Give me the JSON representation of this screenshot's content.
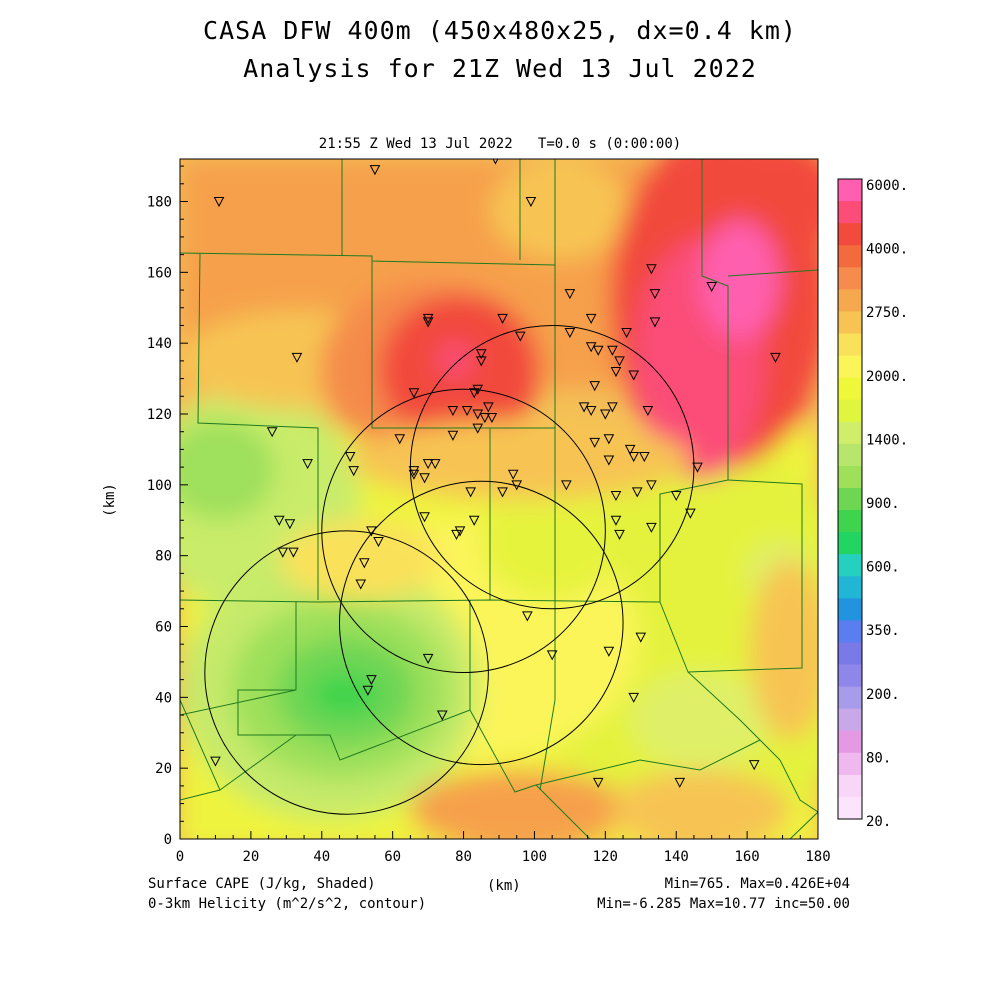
{
  "header": {
    "title": "CASA DFW 400m (450x480x25, dx=0.4 km)",
    "subtitle": "Analysis for 21Z Wed 13 Jul 2022",
    "time_label": "21:55 Z Wed 13 Jul 2022   T=0.0 s (0:00:00)"
  },
  "footer": {
    "field_label": "Surface CAPE (J/kg, Shaded)",
    "contour_label": "0-3km Helicity (m^2/s^2, contour)",
    "x_unit": "(km)",
    "shade_stats": "Min=765. Max=0.426E+04",
    "contour_stats": "Min=-6.285 Max=10.77 inc=50.00"
  },
  "axes": {
    "x_ticks": [
      "0",
      "20",
      "40",
      "60",
      "80",
      "100",
      "120",
      "140",
      "160",
      "180"
    ],
    "y_ticks": [
      "0",
      "20",
      "40",
      "60",
      "80",
      "100",
      "120",
      "140",
      "160",
      "180"
    ],
    "y_label": "(km)",
    "xlim": [
      0,
      180
    ],
    "ylim": [
      0,
      192
    ]
  },
  "colorbar": {
    "labels": [
      "6000.",
      "4000.",
      "2750.",
      "2000.",
      "1400.",
      "900.",
      "600.",
      "350.",
      "200.",
      "80.",
      "20."
    ],
    "colors": [
      "#ff5fae",
      "#fb4d78",
      "#f24a3c",
      "#f36a3c",
      "#f58b4c",
      "#f6a84e",
      "#f7c453",
      "#fae15a",
      "#fbf55a",
      "#eef73a",
      "#dff53e",
      "#d0ee6a",
      "#b8e66c",
      "#9ee05a",
      "#6fd654",
      "#3fd44e",
      "#22d462",
      "#25d0bf",
      "#22b6d6",
      "#2293de",
      "#5a7ef0",
      "#7a7ae6",
      "#8f86ea",
      "#a79ce9",
      "#c9a8ea",
      "#e49ae2",
      "#efb8ef",
      "#f7d6f7",
      "#fce4fc"
    ]
  },
  "chart_data": {
    "type": "heatmap",
    "field": "Surface CAPE (J/kg)",
    "x_unit": "km",
    "y_unit": "km",
    "xlim": [
      0,
      180
    ],
    "ylim": [
      0,
      192
    ],
    "min": 765,
    "max": 4260,
    "features": [
      {
        "kind": "maximum",
        "x": 140,
        "y": 140,
        "value": 4000
      },
      {
        "kind": "maximum",
        "x": 78,
        "y": 135,
        "value": 3500
      },
      {
        "kind": "minimum",
        "x": 45,
        "y": 42,
        "value": 900
      },
      {
        "kind": "relative minimum",
        "x": 105,
        "y": 88,
        "value": 1400
      }
    ],
    "radar_rings_km": [
      {
        "x": 105,
        "y": 105,
        "r": 40
      },
      {
        "x": 80,
        "y": 87,
        "r": 40
      },
      {
        "x": 85,
        "y": 61,
        "r": 40
      },
      {
        "x": 47,
        "y": 47,
        "r": 40
      }
    ],
    "stations_km": [
      [
        11,
        180
      ],
      [
        55,
        189
      ],
      [
        89,
        192
      ],
      [
        99,
        180
      ],
      [
        33,
        136
      ],
      [
        26,
        115
      ],
      [
        36,
        106
      ],
      [
        48,
        108
      ],
      [
        49,
        104
      ],
      [
        28,
        90
      ],
      [
        31,
        89
      ],
      [
        29,
        81
      ],
      [
        32,
        81
      ],
      [
        54,
        87
      ],
      [
        56,
        84
      ],
      [
        52,
        78
      ],
      [
        51,
        72
      ],
      [
        62,
        113
      ],
      [
        66,
        126
      ],
      [
        66,
        104
      ],
      [
        66,
        103
      ],
      [
        70,
        106
      ],
      [
        72,
        106
      ],
      [
        69,
        102
      ],
      [
        69,
        91
      ],
      [
        70,
        147
      ],
      [
        70,
        146
      ],
      [
        77,
        121
      ],
      [
        81,
        121
      ],
      [
        77,
        114
      ],
      [
        78,
        86
      ],
      [
        79,
        87
      ],
      [
        82,
        98
      ],
      [
        83,
        90
      ],
      [
        83,
        126
      ],
      [
        84,
        127
      ],
      [
        85,
        137
      ],
      [
        85,
        135
      ],
      [
        84,
        120
      ],
      [
        86,
        119
      ],
      [
        84,
        116
      ],
      [
        87,
        122
      ],
      [
        88,
        119
      ],
      [
        91,
        147
      ],
      [
        96,
        142
      ],
      [
        94,
        103
      ],
      [
        95,
        100
      ],
      [
        91,
        98
      ],
      [
        98,
        63
      ],
      [
        105,
        52
      ],
      [
        109,
        100
      ],
      [
        110,
        143
      ],
      [
        110,
        154
      ],
      [
        114,
        122
      ],
      [
        116,
        121
      ],
      [
        116,
        139
      ],
      [
        118,
        138
      ],
      [
        116,
        147
      ],
      [
        117,
        128
      ],
      [
        117,
        112
      ],
      [
        121,
        113
      ],
      [
        120,
        120
      ],
      [
        122,
        122
      ],
      [
        121,
        107
      ],
      [
        123,
        97
      ],
      [
        123,
        90
      ],
      [
        124,
        86
      ],
      [
        121,
        53
      ],
      [
        122,
        138
      ],
      [
        124,
        135
      ],
      [
        123,
        132
      ],
      [
        126,
        143
      ],
      [
        128,
        131
      ],
      [
        127,
        110
      ],
      [
        128,
        108
      ],
      [
        129,
        98
      ],
      [
        132,
        121
      ],
      [
        131,
        108
      ],
      [
        133,
        100
      ],
      [
        133,
        88
      ],
      [
        133,
        161
      ],
      [
        134,
        154
      ],
      [
        134,
        146
      ],
      [
        130,
        57
      ],
      [
        128,
        40
      ],
      [
        118,
        16
      ],
      [
        140,
        97
      ],
      [
        141,
        16
      ],
      [
        144,
        92
      ],
      [
        146,
        105
      ],
      [
        150,
        156
      ],
      [
        168,
        136
      ],
      [
        162,
        21
      ],
      [
        10,
        22
      ],
      [
        53,
        42
      ],
      [
        54,
        45
      ],
      [
        74,
        35
      ],
      [
        70,
        51
      ]
    ]
  }
}
